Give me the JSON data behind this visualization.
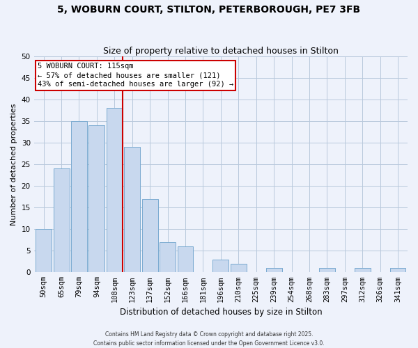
{
  "title": "5, WOBURN COURT, STILTON, PETERBOROUGH, PE7 3FB",
  "subtitle": "Size of property relative to detached houses in Stilton",
  "xlabel": "Distribution of detached houses by size in Stilton",
  "ylabel": "Number of detached properties",
  "bar_labels": [
    "50sqm",
    "65sqm",
    "79sqm",
    "94sqm",
    "108sqm",
    "123sqm",
    "137sqm",
    "152sqm",
    "166sqm",
    "181sqm",
    "196sqm",
    "210sqm",
    "225sqm",
    "239sqm",
    "254sqm",
    "268sqm",
    "283sqm",
    "297sqm",
    "312sqm",
    "326sqm",
    "341sqm"
  ],
  "bar_values": [
    10,
    24,
    35,
    34,
    38,
    29,
    17,
    7,
    6,
    0,
    3,
    2,
    0,
    1,
    0,
    0,
    1,
    0,
    1,
    0,
    1
  ],
  "bar_color": "#c8d8ee",
  "bar_edge_color": "#7aaad0",
  "vline_color": "#cc0000",
  "vline_bar_index": 4,
  "annotation_title": "5 WOBURN COURT: 115sqm",
  "annotation_line1": "← 57% of detached houses are smaller (121)",
  "annotation_line2": "43% of semi-detached houses are larger (92) →",
  "ylim": [
    0,
    50
  ],
  "yticks": [
    0,
    5,
    10,
    15,
    20,
    25,
    30,
    35,
    40,
    45,
    50
  ],
  "footer_line1": "Contains HM Land Registry data © Crown copyright and database right 2025.",
  "footer_line2": "Contains public sector information licensed under the Open Government Licence v3.0.",
  "bg_color": "#eef2fb",
  "grid_color": "#b8c8dc",
  "title_fontsize": 10,
  "subtitle_fontsize": 9,
  "ylabel_fontsize": 8,
  "xlabel_fontsize": 8.5,
  "tick_fontsize": 7.5,
  "ann_fontsize": 7.5,
  "footer_fontsize": 5.5
}
